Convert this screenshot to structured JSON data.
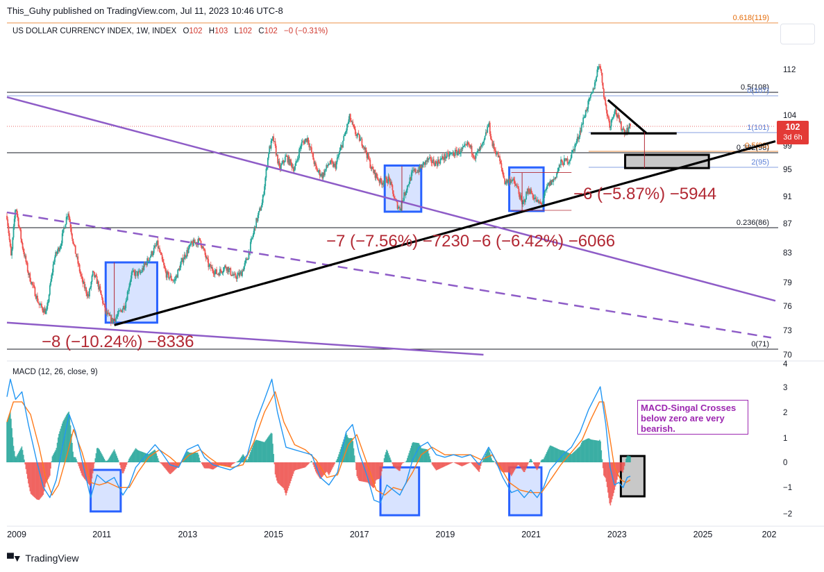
{
  "header": {
    "publisher": "This_Guhy published on TradingView.com, Jul 11, 2023 10:46 UTC-8",
    "symbol": "US DOLLAR CURRENCY INDEX, 1W, INDEX",
    "ohlc": [
      {
        "label": "O",
        "value": "102"
      },
      {
        "label": "H",
        "value": "103"
      },
      {
        "label": "L",
        "value": "102"
      },
      {
        "label": "C",
        "value": "102"
      }
    ],
    "change": "−0 (−0.31%)"
  },
  "price_tag": {
    "price": "102",
    "countdown": "3d 6h"
  },
  "macd_legend": "MACD (12, 26, close, 9)",
  "note": "MACD-Singal Crosses below zero are very bearish.",
  "footer": {
    "brand": "TradingView"
  },
  "colors": {
    "up": "#26a69a",
    "down": "#ef5350",
    "macd_line": "#2196f3",
    "signal_line": "#ff7a1a",
    "box_blue": "#2962ff",
    "trend_purple": "#8e5cc7",
    "measure_red": "#b22833",
    "fib_orange": "#e46c0a"
  },
  "chart_data": [
    {
      "type": "candlestick",
      "title": "US DOLLAR CURRENCY INDEX, 1W, INDEX",
      "x_tick_labels": [
        "2009",
        "2011",
        "2013",
        "2015",
        "2017",
        "2019",
        "2021",
        "2023",
        "2025",
        "202"
      ],
      "y_tick_labels": [
        "112",
        "104",
        "99",
        "95",
        "91",
        "87",
        "83",
        "79",
        "76",
        "73",
        "70"
      ],
      "y_scale": "log",
      "ylim": [
        69,
        120
      ],
      "xlim": [
        2009.0,
        2026.9
      ],
      "price_path": [
        [
          2009.0,
          88
        ],
        [
          2009.1,
          82
        ],
        [
          2009.2,
          89.5
        ],
        [
          2009.35,
          84
        ],
        [
          2009.5,
          80
        ],
        [
          2009.75,
          76
        ],
        [
          2009.92,
          75
        ],
        [
          2010.1,
          82
        ],
        [
          2010.25,
          84
        ],
        [
          2010.42,
          88.7
        ],
        [
          2010.55,
          84
        ],
        [
          2010.75,
          79
        ],
        [
          2010.9,
          77
        ],
        [
          2011.0,
          80
        ],
        [
          2011.1,
          79
        ],
        [
          2011.3,
          75
        ],
        [
          2011.45,
          74
        ],
        [
          2011.55,
          74.5
        ],
        [
          2011.75,
          76
        ],
        [
          2011.9,
          80
        ],
        [
          2012.1,
          80
        ],
        [
          2012.3,
          82
        ],
        [
          2012.5,
          84
        ],
        [
          2012.7,
          80
        ],
        [
          2012.9,
          79
        ],
        [
          2013.1,
          82
        ],
        [
          2013.3,
          84
        ],
        [
          2013.5,
          84.5
        ],
        [
          2013.7,
          81
        ],
        [
          2013.9,
          80
        ],
        [
          2014.1,
          81
        ],
        [
          2014.3,
          79.5
        ],
        [
          2014.45,
          80
        ],
        [
          2014.6,
          82
        ],
        [
          2014.8,
          87
        ],
        [
          2014.95,
          90
        ],
        [
          2015.1,
          98
        ],
        [
          2015.2,
          100
        ],
        [
          2015.35,
          95
        ],
        [
          2015.5,
          97
        ],
        [
          2015.7,
          95
        ],
        [
          2015.85,
          99
        ],
        [
          2016.0,
          100
        ],
        [
          2016.2,
          95
        ],
        [
          2016.35,
          94
        ],
        [
          2016.5,
          96
        ],
        [
          2016.65,
          95.5
        ],
        [
          2016.85,
          100
        ],
        [
          2016.98,
          103.5
        ],
        [
          2017.1,
          101
        ],
        [
          2017.3,
          99
        ],
        [
          2017.5,
          95
        ],
        [
          2017.7,
          93
        ],
        [
          2017.9,
          93.5
        ],
        [
          2018.05,
          90
        ],
        [
          2018.15,
          89
        ],
        [
          2018.3,
          92
        ],
        [
          2018.45,
          94.5
        ],
        [
          2018.6,
          95
        ],
        [
          2018.8,
          96.5
        ],
        [
          2019.0,
          96
        ],
        [
          2019.2,
          97
        ],
        [
          2019.4,
          97.5
        ],
        [
          2019.6,
          98
        ],
        [
          2019.75,
          99
        ],
        [
          2019.9,
          97
        ],
        [
          2020.1,
          99
        ],
        [
          2020.22,
          102.5
        ],
        [
          2020.3,
          99
        ],
        [
          2020.45,
          97
        ],
        [
          2020.6,
          93
        ],
        [
          2020.75,
          93.5
        ],
        [
          2020.9,
          92
        ],
        [
          2021.0,
          89.5
        ],
        [
          2021.15,
          92
        ],
        [
          2021.35,
          90
        ],
        [
          2021.45,
          89.7
        ],
        [
          2021.6,
          92.5
        ],
        [
          2021.75,
          93.5
        ],
        [
          2021.9,
          96
        ],
        [
          2022.1,
          96.5
        ],
        [
          2022.3,
          100
        ],
        [
          2022.5,
          105
        ],
        [
          2022.65,
          108
        ],
        [
          2022.8,
          113.5
        ],
        [
          2022.95,
          105
        ],
        [
          2023.05,
          102
        ],
        [
          2023.15,
          105
        ],
        [
          2023.3,
          102
        ],
        [
          2023.4,
          101
        ],
        [
          2023.52,
          102
        ]
      ],
      "annotations": [
        {
          "text": "−8 (−10.24%) −8336"
        },
        {
          "text": "−7 (−7.56%) −7230"
        },
        {
          "text": "−6 (−6.42%) −6066"
        },
        {
          "text": "−6 (−5.87%) −5944"
        }
      ],
      "fib_levels": [
        {
          "label": "0.618(119)",
          "value": 119
        },
        {
          "label": "0.5(108)",
          "value": 108
        },
        {
          "label": "0(107)",
          "value": 107
        },
        {
          "label": "1(101)",
          "value": 101
        },
        {
          "label": "0.382(98)",
          "value": 98
        },
        {
          "label": "0.5(98)",
          "value": 98
        },
        {
          "label": "2(95)",
          "value": 95
        },
        {
          "label": "0.236(86)",
          "value": 86
        },
        {
          "label": "0(71)",
          "value": 71
        }
      ],
      "trend_lines": [
        {
          "color": "purple",
          "from": [
            2009.0,
            107
          ],
          "to": [
            2026.9,
            76.5
          ]
        },
        {
          "color": "purple-dashed",
          "from": [
            2009.0,
            88.5
          ],
          "to": [
            2026.8,
            72
          ]
        },
        {
          "color": "purple",
          "from": [
            2009.0,
            73.8
          ],
          "to": [
            2020.1,
            70
          ]
        },
        {
          "color": "black",
          "from": [
            2011.5,
            73.5
          ],
          "to": [
            2026.9,
            99.5
          ]
        },
        {
          "color": "black",
          "from": [
            2023.0,
            106.5
          ],
          "to": [
            2023.9,
            100.8
          ]
        },
        {
          "color": "black",
          "from": [
            2022.6,
            100.8
          ],
          "to": [
            2024.6,
            100.8
          ]
        }
      ],
      "highlight_boxes": [
        {
          "from": [
            2011.3,
            73.8
          ],
          "to": [
            2012.5,
            81.5
          ]
        },
        {
          "from": [
            2017.8,
            88.6
          ],
          "to": [
            2018.65,
            95.6
          ]
        },
        {
          "from": [
            2020.7,
            88.7
          ],
          "to": [
            2021.5,
            95.3
          ]
        },
        {
          "from": [
            2023.4,
            95.2
          ],
          "to": [
            2025.35,
            97.3
          ],
          "style": "black-gray"
        }
      ]
    },
    {
      "type": "line",
      "title": "MACD (12, 26, close, 9)",
      "y_tick_labels": [
        "4",
        "3",
        "2",
        "1",
        "0",
        "−1",
        "−2"
      ],
      "ylim": [
        -2.3,
        4.1
      ],
      "macd": [
        [
          2009.0,
          2.6
        ],
        [
          2009.08,
          3.3
        ],
        [
          2009.2,
          2.5
        ],
        [
          2009.35,
          2.8
        ],
        [
          2009.5,
          1.5
        ],
        [
          2009.7,
          0.0
        ],
        [
          2009.85,
          -1.0
        ],
        [
          2010.0,
          -1.4
        ],
        [
          2010.15,
          -0.7
        ],
        [
          2010.3,
          0.7
        ],
        [
          2010.45,
          1.9
        ],
        [
          2010.6,
          1.2
        ],
        [
          2010.8,
          -0.3
        ],
        [
          2010.95,
          -1.4
        ],
        [
          2011.1,
          -0.5
        ],
        [
          2011.3,
          -0.8
        ],
        [
          2011.5,
          -0.6
        ],
        [
          2011.7,
          -1.3
        ],
        [
          2011.85,
          -0.9
        ],
        [
          2012.0,
          -0.2
        ],
        [
          2012.2,
          0.2
        ],
        [
          2012.45,
          0.7
        ],
        [
          2012.6,
          0.4
        ],
        [
          2012.8,
          -0.1
        ],
        [
          2013.0,
          -0.2
        ],
        [
          2013.2,
          0.5
        ],
        [
          2013.45,
          0.7
        ],
        [
          2013.6,
          0.2
        ],
        [
          2013.8,
          -0.1
        ],
        [
          2014.0,
          -0.2
        ],
        [
          2014.2,
          -0.3
        ],
        [
          2014.4,
          -0.1
        ],
        [
          2014.6,
          0.3
        ],
        [
          2014.8,
          1.6
        ],
        [
          2015.0,
          2.5
        ],
        [
          2015.17,
          3.3
        ],
        [
          2015.3,
          2.0
        ],
        [
          2015.5,
          0.6
        ],
        [
          2015.7,
          0.5
        ],
        [
          2015.9,
          0.4
        ],
        [
          2016.1,
          0.3
        ],
        [
          2016.3,
          -0.6
        ],
        [
          2016.5,
          -0.9
        ],
        [
          2016.7,
          -0.4
        ],
        [
          2016.9,
          1.2
        ],
        [
          2017.05,
          1.5
        ],
        [
          2017.2,
          0.4
        ],
        [
          2017.4,
          -0.6
        ],
        [
          2017.55,
          -1.5
        ],
        [
          2017.7,
          -1.6
        ],
        [
          2017.85,
          -0.9
        ],
        [
          2018.0,
          -1.1
        ],
        [
          2018.15,
          -1.3
        ],
        [
          2018.3,
          -0.8
        ],
        [
          2018.45,
          0.1
        ],
        [
          2018.6,
          0.6
        ],
        [
          2018.8,
          0.8
        ],
        [
          2019.0,
          0.3
        ],
        [
          2019.2,
          0.2
        ],
        [
          2019.4,
          0.3
        ],
        [
          2019.6,
          0.2
        ],
        [
          2019.8,
          0.3
        ],
        [
          2020.0,
          -0.1
        ],
        [
          2020.22,
          0.6
        ],
        [
          2020.35,
          0.2
        ],
        [
          2020.55,
          -0.6
        ],
        [
          2020.75,
          -1.2
        ],
        [
          2020.9,
          -1.1
        ],
        [
          2021.05,
          -1.4
        ],
        [
          2021.2,
          -1.1
        ],
        [
          2021.35,
          -1.4
        ],
        [
          2021.5,
          -1.0
        ],
        [
          2021.65,
          -0.3
        ],
        [
          2021.8,
          0.0
        ],
        [
          2021.95,
          0.3
        ],
        [
          2022.15,
          0.6
        ],
        [
          2022.35,
          1.2
        ],
        [
          2022.55,
          2.1
        ],
        [
          2022.7,
          2.6
        ],
        [
          2022.82,
          3.0
        ],
        [
          2022.95,
          1.5
        ],
        [
          2023.05,
          -0.2
        ],
        [
          2023.15,
          -0.9
        ],
        [
          2023.25,
          -0.8
        ],
        [
          2023.35,
          -1.0
        ],
        [
          2023.45,
          -0.6
        ],
        [
          2023.52,
          -0.55
        ]
      ],
      "signal": [
        [
          2009.0,
          1.6
        ],
        [
          2009.15,
          2.4
        ],
        [
          2009.35,
          2.4
        ],
        [
          2009.55,
          1.9
        ],
        [
          2009.75,
          0.6
        ],
        [
          2009.9,
          -0.6
        ],
        [
          2010.05,
          -1.3
        ],
        [
          2010.2,
          -0.9
        ],
        [
          2010.4,
          0.3
        ],
        [
          2010.55,
          1.3
        ],
        [
          2010.75,
          0.4
        ],
        [
          2010.95,
          -0.8
        ],
        [
          2011.15,
          -0.9
        ],
        [
          2011.35,
          -0.8
        ],
        [
          2011.6,
          -1.0
        ],
        [
          2011.85,
          -1.0
        ],
        [
          2012.05,
          -0.4
        ],
        [
          2012.3,
          0.2
        ],
        [
          2012.55,
          0.5
        ],
        [
          2012.8,
          0.2
        ],
        [
          2013.0,
          -0.1
        ],
        [
          2013.25,
          0.3
        ],
        [
          2013.5,
          0.5
        ],
        [
          2013.7,
          0.2
        ],
        [
          2013.95,
          -0.1
        ],
        [
          2014.25,
          -0.2
        ],
        [
          2014.5,
          -0.1
        ],
        [
          2014.75,
          0.8
        ],
        [
          2015.0,
          2.0
        ],
        [
          2015.25,
          2.8
        ],
        [
          2015.45,
          1.6
        ],
        [
          2015.7,
          0.7
        ],
        [
          2015.95,
          0.5
        ],
        [
          2016.2,
          0.1
        ],
        [
          2016.45,
          -0.6
        ],
        [
          2016.7,
          -0.5
        ],
        [
          2016.95,
          0.7
        ],
        [
          2017.15,
          1.1
        ],
        [
          2017.4,
          -0.1
        ],
        [
          2017.6,
          -1.1
        ],
        [
          2017.8,
          -1.3
        ],
        [
          2018.0,
          -1.0
        ],
        [
          2018.2,
          -1.1
        ],
        [
          2018.45,
          -0.4
        ],
        [
          2018.65,
          0.3
        ],
        [
          2018.9,
          0.6
        ],
        [
          2019.2,
          0.3
        ],
        [
          2019.5,
          0.3
        ],
        [
          2019.8,
          0.3
        ],
        [
          2020.05,
          0.1
        ],
        [
          2020.3,
          0.3
        ],
        [
          2020.5,
          -0.2
        ],
        [
          2020.7,
          -0.8
        ],
        [
          2020.95,
          -1.1
        ],
        [
          2021.2,
          -1.2
        ],
        [
          2021.45,
          -1.2
        ],
        [
          2021.7,
          -0.6
        ],
        [
          2021.9,
          -0.1
        ],
        [
          2022.15,
          0.4
        ],
        [
          2022.4,
          0.9
        ],
        [
          2022.6,
          1.7
        ],
        [
          2022.8,
          2.4
        ],
        [
          2022.9,
          2.4
        ],
        [
          2023.05,
          0.9
        ],
        [
          2023.15,
          -0.2
        ],
        [
          2023.3,
          -0.7
        ],
        [
          2023.42,
          -0.8
        ],
        [
          2023.52,
          -0.7
        ]
      ],
      "highlight_boxes": [
        {
          "from": [
            2010.95,
            -1.95
          ],
          "to": [
            2011.65,
            -0.3
          ]
        },
        {
          "from": [
            2017.7,
            -2.1
          ],
          "to": [
            2018.6,
            -0.2
          ]
        },
        {
          "from": [
            2020.7,
            -2.1
          ],
          "to": [
            2021.45,
            -0.2
          ]
        },
        {
          "from": [
            2023.3,
            -1.35
          ],
          "to": [
            2023.85,
            0.25
          ],
          "style": "black-gray"
        }
      ]
    }
  ]
}
